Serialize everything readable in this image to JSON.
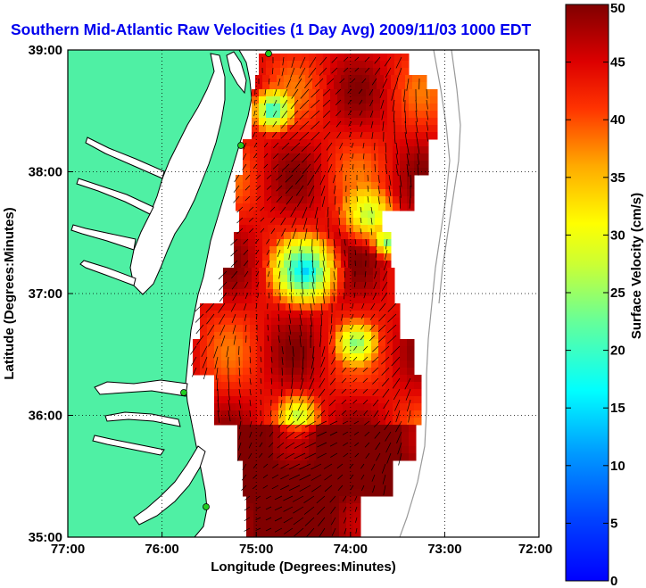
{
  "title": "Southern Mid-Atlantic Raw Velocities (1 Day Avg) 2009/11/03 1000 EDT",
  "chart_data": {
    "type": "heatmap",
    "title": "Southern Mid-Atlantic Raw Velocities (1 Day Avg) 2009/11/03 1000 EDT",
    "xlabel": "Longitude (Degrees:Minutes)",
    "ylabel": "Latitude (Degrees:Minutes)",
    "x_ticks": [
      "77:00",
      "76:00",
      "75:00",
      "74:00",
      "73:00",
      "72:00"
    ],
    "y_ticks": [
      "39:00",
      "38:00",
      "37:00",
      "36:00",
      "35:00"
    ],
    "xlim": [
      -77,
      -72
    ],
    "ylim": [
      35,
      39
    ],
    "grid": true,
    "colorbar": {
      "label": "Surface Velocity (cm/s)",
      "ticks": [
        "50",
        "45",
        "40",
        "35",
        "30",
        "25",
        "20",
        "15",
        "10",
        "5",
        "0"
      ],
      "range": [
        0,
        50
      ],
      "colormap": "jet"
    }
  },
  "colors": {
    "land": "#4ff0a4",
    "water": "#ffffff",
    "coast": "#000000",
    "isobath": "#999999",
    "station": "#22cc22",
    "title": "#0000ee"
  },
  "icons": {
    "station": "hf-radar-station-icon"
  }
}
